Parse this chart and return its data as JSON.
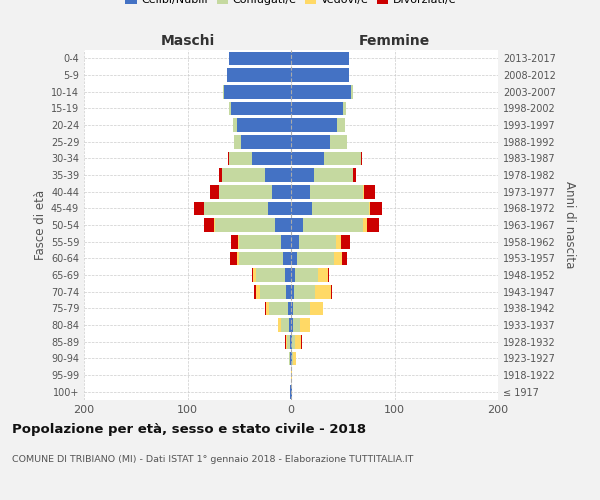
{
  "age_groups": [
    "100+",
    "95-99",
    "90-94",
    "85-89",
    "80-84",
    "75-79",
    "70-74",
    "65-69",
    "60-64",
    "55-59",
    "50-54",
    "45-49",
    "40-44",
    "35-39",
    "30-34",
    "25-29",
    "20-24",
    "15-19",
    "10-14",
    "5-9",
    "0-4"
  ],
  "birth_years": [
    "≤ 1917",
    "1918-1922",
    "1923-1927",
    "1928-1932",
    "1933-1937",
    "1938-1942",
    "1943-1947",
    "1948-1952",
    "1953-1957",
    "1958-1962",
    "1963-1967",
    "1968-1972",
    "1973-1977",
    "1978-1982",
    "1983-1987",
    "1988-1992",
    "1993-1997",
    "1998-2002",
    "2003-2007",
    "2008-2012",
    "2013-2017"
  ],
  "colors": {
    "celibi": "#4472c4",
    "coniugati": "#c5d9a0",
    "vedovi": "#ffd966",
    "divorziati": "#cc0000",
    "bg": "#f2f2f2",
    "plot_bg": "#ffffff",
    "grid": "#cccccc"
  },
  "maschi": {
    "celibi": [
      1,
      0,
      1,
      1,
      2,
      3,
      5,
      6,
      8,
      10,
      15,
      22,
      18,
      25,
      38,
      48,
      52,
      58,
      65,
      62,
      60
    ],
    "coniugati": [
      0,
      0,
      1,
      3,
      8,
      18,
      25,
      28,
      42,
      40,
      58,
      62,
      52,
      42,
      22,
      7,
      4,
      2,
      1,
      0,
      0
    ],
    "vedovi": [
      0,
      0,
      0,
      1,
      3,
      3,
      4,
      3,
      2,
      1,
      1,
      0,
      0,
      0,
      0,
      0,
      0,
      0,
      0,
      0,
      0
    ],
    "divorziati": [
      0,
      0,
      0,
      1,
      0,
      1,
      2,
      1,
      7,
      7,
      10,
      10,
      8,
      3,
      1,
      0,
      0,
      0,
      0,
      0,
      0
    ]
  },
  "femmine": {
    "celibi": [
      1,
      0,
      1,
      1,
      2,
      2,
      3,
      4,
      6,
      8,
      12,
      20,
      18,
      22,
      32,
      38,
      44,
      50,
      58,
      56,
      56
    ],
    "coniugati": [
      0,
      0,
      1,
      3,
      7,
      16,
      20,
      22,
      36,
      35,
      58,
      55,
      52,
      38,
      36,
      16,
      8,
      3,
      2,
      0,
      0
    ],
    "vedovi": [
      0,
      1,
      3,
      6,
      9,
      13,
      16,
      10,
      7,
      5,
      3,
      1,
      1,
      0,
      0,
      0,
      0,
      0,
      0,
      0,
      0
    ],
    "divorziati": [
      0,
      0,
      0,
      1,
      0,
      0,
      1,
      1,
      5,
      9,
      12,
      12,
      10,
      3,
      1,
      0,
      0,
      0,
      0,
      0,
      0
    ]
  },
  "xlim": 200,
  "title": "Popolazione per età, sesso e stato civile - 2018",
  "subtitle": "COMUNE DI TRIBIANO (MI) - Dati ISTAT 1° gennaio 2018 - Elaborazione TUTTITALIA.IT",
  "ylabel_left": "Fasce di età",
  "ylabel_right": "Anni di nascita",
  "maschi_label": "Maschi",
  "femmine_label": "Femmine"
}
